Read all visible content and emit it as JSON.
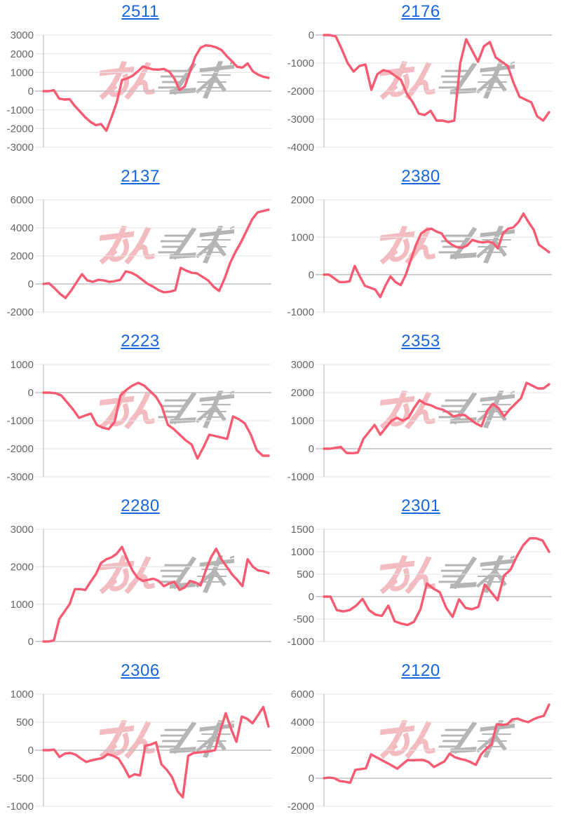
{
  "page": {
    "background_color": "#ffffff",
    "layout": "2x5 grid of stock performance sparkline charts"
  },
  "style": {
    "line_color": "#f85a72",
    "title_color": "#1766dd",
    "label_color": "#666666",
    "grid_color": "#e6e6e6",
    "zero_line_color": "#c2c2c2",
    "axis_line_color": "#c9c9c9"
  },
  "watermark": {
    "name": "minkabu-logo",
    "pink_text": "みん",
    "gray_text": "かぶ",
    "pink_color": "#f0b1b7",
    "gray_color": "#a8a8a8"
  },
  "chart_data": [
    {
      "type": "line",
      "title": "2511",
      "xlabel": "",
      "ylabel": "",
      "ylim": [
        -3000,
        3000
      ],
      "yticks": [
        3000,
        2000,
        1000,
        0,
        -1000,
        -2000,
        -3000
      ],
      "grid": true,
      "legend": null,
      "values": [
        0,
        0,
        50,
        -400,
        -450,
        -430,
        -800,
        -1100,
        -1400,
        -1650,
        -1820,
        -1760,
        -2120,
        -1400,
        -600,
        600,
        680,
        820,
        1050,
        1320,
        1230,
        1160,
        1150,
        1190,
        1050,
        680,
        60,
        260,
        1050,
        1850,
        2320,
        2450,
        2420,
        2340,
        2200,
        1880,
        1600,
        1300,
        1260,
        1480,
        1060,
        880,
        770,
        710
      ]
    },
    {
      "type": "line",
      "title": "2176",
      "xlabel": "",
      "ylabel": "",
      "ylim": [
        -4000,
        0
      ],
      "yticks": [
        0,
        -1000,
        -2000,
        -3000,
        -4000
      ],
      "grid": true,
      "legend": null,
      "values": [
        0,
        0,
        -50,
        -500,
        -1000,
        -1300,
        -1100,
        -1050,
        -1950,
        -1400,
        -1250,
        -1300,
        -1450,
        -1600,
        -2100,
        -2400,
        -2800,
        -2850,
        -2700,
        -3050,
        -3050,
        -3100,
        -3050,
        -1000,
        -150,
        -550,
        -950,
        -400,
        -250,
        -800,
        -950,
        -1100,
        -1700,
        -2200,
        -2300,
        -2400,
        -2900,
        -3050,
        -2750
      ]
    },
    {
      "type": "line",
      "title": "2137",
      "xlabel": "",
      "ylabel": "",
      "ylim": [
        -2000,
        6000
      ],
      "yticks": [
        6000,
        4000,
        2000,
        0,
        -2000
      ],
      "grid": true,
      "legend": null,
      "values": [
        0,
        50,
        -300,
        -700,
        -1000,
        -500,
        100,
        700,
        250,
        150,
        300,
        250,
        150,
        200,
        300,
        900,
        800,
        600,
        300,
        0,
        -200,
        -450,
        -600,
        -550,
        -450,
        1150,
        950,
        800,
        750,
        500,
        250,
        -200,
        -500,
        400,
        1500,
        2300,
        3000,
        3800,
        4600,
        5100,
        5200,
        5300
      ]
    },
    {
      "type": "line",
      "title": "2380",
      "xlabel": "",
      "ylabel": "",
      "ylim": [
        -1000,
        2000
      ],
      "yticks": [
        2000,
        1000,
        0,
        -1000
      ],
      "grid": true,
      "legend": null,
      "values": [
        0,
        0,
        -100,
        -200,
        -200,
        -180,
        230,
        -50,
        -300,
        -350,
        -400,
        -600,
        -300,
        -50,
        -200,
        -280,
        0,
        400,
        800,
        1100,
        1200,
        1230,
        1150,
        1100,
        900,
        800,
        730,
        720,
        780,
        930,
        880,
        860,
        880,
        850,
        700,
        1100,
        1230,
        1260,
        1400,
        1630,
        1400,
        1200,
        800,
        700,
        600
      ]
    },
    {
      "type": "line",
      "title": "2223",
      "xlabel": "",
      "ylabel": "",
      "ylim": [
        -3000,
        1000
      ],
      "yticks": [
        1000,
        0,
        -1000,
        -2000,
        -3000
      ],
      "grid": true,
      "legend": null,
      "values": [
        0,
        0,
        -20,
        -100,
        -350,
        -600,
        -900,
        -820,
        -750,
        -1150,
        -1250,
        -1300,
        -1050,
        -100,
        100,
        250,
        350,
        250,
        50,
        -150,
        -500,
        -1150,
        -1300,
        -1500,
        -1700,
        -1850,
        -2350,
        -1950,
        -1500,
        -1550,
        -1600,
        -1650,
        -850,
        -950,
        -1100,
        -1500,
        -2050,
        -2250,
        -2250
      ]
    },
    {
      "type": "line",
      "title": "2353",
      "xlabel": "",
      "ylabel": "",
      "ylim": [
        -1000,
        3000
      ],
      "yticks": [
        3000,
        2000,
        1000,
        0,
        -1000
      ],
      "grid": true,
      "legend": null,
      "values": [
        0,
        0,
        30,
        60,
        -150,
        -160,
        -140,
        350,
        600,
        850,
        500,
        750,
        1000,
        1100,
        1000,
        1100,
        1450,
        1730,
        1600,
        1550,
        1450,
        1400,
        1300,
        1150,
        1200,
        1200,
        1050,
        900,
        800,
        1350,
        1600,
        1450,
        1150,
        1400,
        1600,
        1800,
        2350,
        2250,
        2150,
        2150,
        2300
      ]
    },
    {
      "type": "line",
      "title": "2280",
      "xlabel": "",
      "ylabel": "",
      "ylim": [
        0,
        3000
      ],
      "yticks": [
        3000,
        2000,
        1000,
        0
      ],
      "grid": true,
      "legend": null,
      "values": [
        0,
        0,
        30,
        600,
        800,
        1000,
        1400,
        1400,
        1380,
        1600,
        1800,
        2100,
        2200,
        2250,
        2350,
        2530,
        2200,
        1900,
        1700,
        1620,
        1650,
        1680,
        1620,
        1480,
        1550,
        1600,
        1380,
        1450,
        1620,
        1580,
        1500,
        1900,
        2250,
        2480,
        2200,
        2000,
        1800,
        1650,
        1480,
        2200,
        2000,
        1900,
        1880,
        1830
      ]
    },
    {
      "type": "line",
      "title": "2301",
      "xlabel": "",
      "ylabel": "",
      "ylim": [
        -1000,
        1500
      ],
      "yticks": [
        1500,
        1000,
        500,
        0,
        -500,
        -1000
      ],
      "grid": true,
      "legend": null,
      "values": [
        0,
        0,
        -300,
        -330,
        -300,
        -200,
        -50,
        -300,
        -400,
        -430,
        -200,
        -550,
        -600,
        -630,
        -560,
        -280,
        290,
        180,
        100,
        -250,
        -450,
        -60,
        -250,
        -280,
        -230,
        270,
        100,
        -80,
        470,
        600,
        900,
        1150,
        1300,
        1300,
        1250,
        1000
      ]
    },
    {
      "type": "line",
      "title": "2306",
      "xlabel": "",
      "ylabel": "",
      "ylim": [
        -1000,
        1000
      ],
      "yticks": [
        1000,
        500,
        0,
        -500,
        -1000
      ],
      "grid": true,
      "legend": null,
      "values": [
        0,
        0,
        10,
        -120,
        -60,
        -50,
        -80,
        -150,
        -210,
        -180,
        -160,
        -140,
        -70,
        -100,
        -150,
        -300,
        -480,
        -430,
        -450,
        80,
        100,
        140,
        -250,
        -350,
        -480,
        -730,
        -840,
        -100,
        -50,
        -40,
        -30,
        -20,
        0,
        350,
        660,
        380,
        150,
        600,
        560,
        480,
        620,
        770,
        420
      ]
    },
    {
      "type": "line",
      "title": "2120",
      "xlabel": "",
      "ylabel": "",
      "ylim": [
        -2000,
        6000
      ],
      "yticks": [
        6000,
        4000,
        2000,
        0,
        -2000
      ],
      "grid": true,
      "legend": null,
      "values": [
        0,
        50,
        0,
        -200,
        -250,
        -320,
        600,
        650,
        700,
        1700,
        1500,
        1300,
        1100,
        900,
        680,
        1000,
        1300,
        1280,
        1300,
        1300,
        1150,
        800,
        1000,
        1200,
        1750,
        1500,
        1380,
        1300,
        1150,
        950,
        1700,
        2100,
        2400,
        3850,
        3800,
        3850,
        4200,
        4250,
        4100,
        4000,
        4200,
        4350,
        4450,
        5250
      ]
    }
  ]
}
